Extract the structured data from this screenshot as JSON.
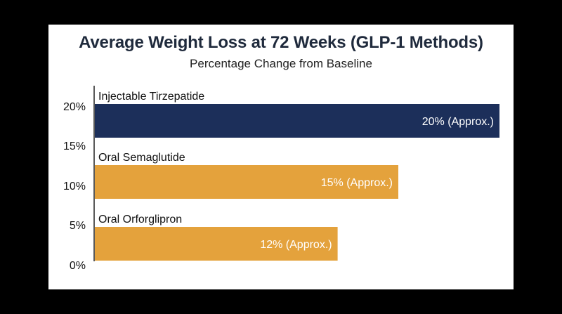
{
  "chart_data": {
    "type": "bar",
    "orientation": "horizontal",
    "title": "Average Weight Loss at 72 Weeks (GLP-1 Methods)",
    "subtitle": "Percentage Change from Baseline",
    "xlabel": "",
    "ylabel": "",
    "xlim": [
      0,
      20
    ],
    "grid": false,
    "legend": "none",
    "tick_labels": [
      "20%",
      "15%",
      "10%",
      "5%",
      "0%"
    ],
    "categories": [
      "Injectable Tirzepatide",
      "Oral Semaglutide",
      "Oral Orforglipron"
    ],
    "values": [
      20,
      15,
      12
    ],
    "data_labels": [
      "20% (Approx.)",
      "15% (Approx.)",
      "12% (Approx.)"
    ],
    "colors": [
      "#1c2f5a",
      "#e4a23c",
      "#e4a23c"
    ]
  }
}
